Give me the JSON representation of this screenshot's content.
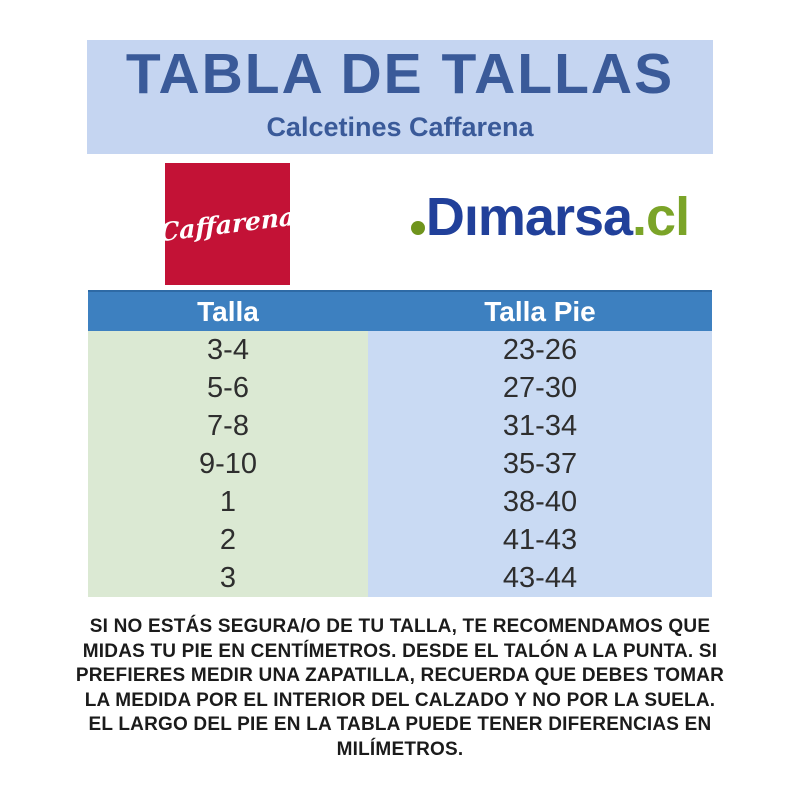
{
  "header": {
    "title": "TABLA DE TALLAS",
    "subtitle": "Calcetines Caffarena",
    "bg_color": "#c5d5f1",
    "text_color": "#3a5a99"
  },
  "logos": {
    "caffarena": {
      "label": "Caffarena",
      "bg_color": "#c31236",
      "text_color": "#ffffff"
    },
    "dimarsa": {
      "name": "Dımarsa",
      "domain": ".cl",
      "navy_color": "#21409a",
      "green_color": "#7ba428"
    }
  },
  "table": {
    "columns": [
      "Talla",
      "Talla Pie"
    ],
    "header_bg": "#3d80c0",
    "header_text_color": "#ffffff",
    "col1_bg": "#dbe9d3",
    "col2_bg": "#c9daf3",
    "rows": [
      {
        "talla": "3-4",
        "talla_pie": "23-26"
      },
      {
        "talla": "5-6",
        "talla_pie": "27-30"
      },
      {
        "talla": "7-8",
        "talla_pie": "31-34"
      },
      {
        "talla": "9-10",
        "talla_pie": "35-37"
      },
      {
        "talla": "1",
        "talla_pie": "38-40"
      },
      {
        "talla": "2",
        "talla_pie": "41-43"
      },
      {
        "talla": "3",
        "talla_pie": "43-44"
      }
    ]
  },
  "footer": {
    "lines": [
      "SI NO ESTÁS SEGURA/O DE TU TALLA, TE RECOMENDAMOS QUE",
      "MIDAS TU PIE EN CENTÍMETROS. DESDE EL TALÓN A LA PUNTA. SI",
      "PREFIERES MEDIR UNA ZAPATILLA, RECUERDA QUE DEBES TOMAR",
      "LA MEDIDA POR EL INTERIOR DEL CALZADO Y NO POR LA SUELA.",
      "EL LARGO DEL PIE EN LA TABLA PUEDE TENER DIFERENCIAS EN",
      "MILÍMETROS."
    ]
  }
}
